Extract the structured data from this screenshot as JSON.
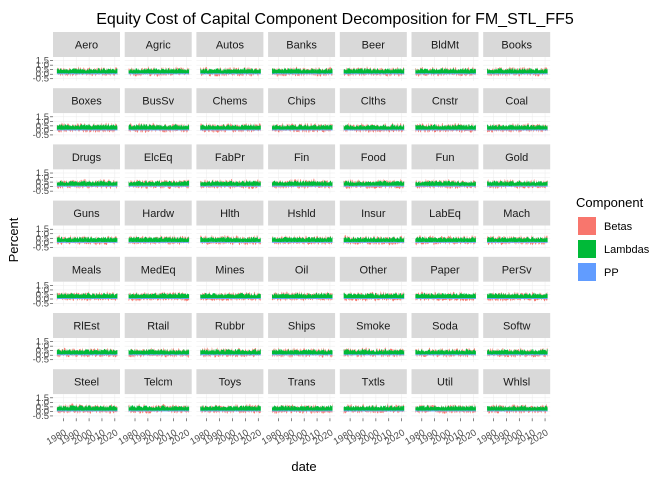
{
  "chart_data": {
    "type": "area",
    "title": "Equity Cost of Capital Component Decomposition for FM_STL_FF5",
    "xlabel": "date",
    "ylabel": "Percent",
    "y_ticks": [
      "1.5",
      "1.0",
      "0.5",
      "0.0",
      "-0.5"
    ],
    "y_tick_values": [
      1.5,
      1.0,
      0.5,
      0.0,
      -0.5
    ],
    "ylim": [
      -0.75,
      1.9
    ],
    "x_ticks": [
      "1980",
      "1990",
      "2000",
      "2010",
      "2020"
    ],
    "x_tick_values": [
      1980,
      1990,
      2000,
      2010,
      2020
    ],
    "xlim": [
      1972,
      2024
    ],
    "facets": [
      "Aero",
      "Agric",
      "Autos",
      "Banks",
      "Beer",
      "BldMt",
      "Books",
      "Boxes",
      "BusSv",
      "Chems",
      "Chips",
      "Clths",
      "Cnstr",
      "Coal",
      "Drugs",
      "ElcEq",
      "FabPr",
      "Fin",
      "Food",
      "Fun",
      "Gold",
      "Guns",
      "Hardw",
      "Hlth",
      "Hshld",
      "Insur",
      "LabEq",
      "Mach",
      "Meals",
      "MedEq",
      "Mines",
      "Oil",
      "Other",
      "Paper",
      "PerSv",
      "RlEst",
      "Rtail",
      "Rubbr",
      "Ships",
      "Smoke",
      "Soda",
      "Softw",
      "Steel",
      "Telcm",
      "Toys",
      "Trans",
      "Txtls",
      "Util",
      "Whlsl"
    ],
    "legend": {
      "title": "Component",
      "position": "right",
      "entries": [
        {
          "name": "Betas",
          "color": "#F8766D"
        },
        {
          "name": "Lambdas",
          "color": "#00BA38"
        },
        {
          "name": "PP",
          "color": "#619CFF"
        }
      ]
    },
    "series": [
      {
        "name": "PP",
        "mean": 0.08,
        "stack": "positive"
      },
      {
        "name": "Lambdas",
        "mean": 0.45,
        "stack": "positive"
      },
      {
        "name": "Betas",
        "mean": -0.15,
        "stack": "mixed"
      }
    ]
  }
}
